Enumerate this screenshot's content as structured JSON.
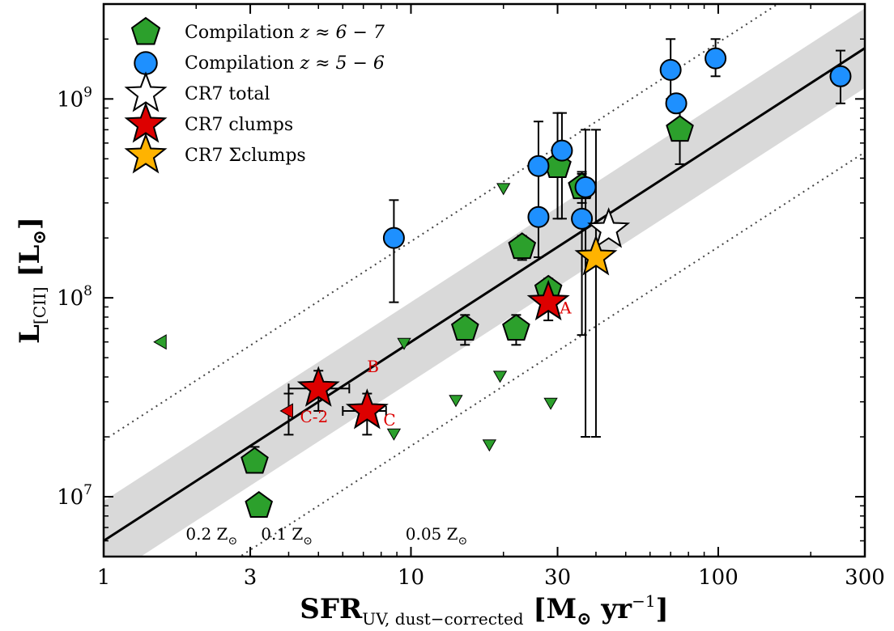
{
  "chart_data": {
    "type": "scatter",
    "title": "",
    "xlabel": "SFR",
    "xlabel_sub": "UV, dust−corrected",
    "xlabel_unit_open": " [M",
    "xlabel_unit_sun": "⊙",
    "xlabel_unit_close": " yr",
    "xlabel_unit_exp": "−1",
    "xlabel_unit_end": "]",
    "ylabel": "L",
    "ylabel_sub": "[CII]",
    "ylabel_unit_open": " [L",
    "ylabel_unit_sun": "⊙",
    "ylabel_unit_end": "]",
    "xscale": "log",
    "yscale": "log",
    "xlim": [
      1,
      300
    ],
    "ylim": [
      5000000,
      3000000000
    ],
    "x_ticks": [
      1,
      3,
      10,
      30,
      100,
      300
    ],
    "x_tick_labels": [
      "1",
      "3",
      "10",
      "30",
      "100",
      "300"
    ],
    "y_ticks": [
      10000000,
      100000000,
      1000000000
    ],
    "y_tick_labels": [
      {
        "base": "10",
        "exp": "7"
      },
      {
        "base": "10",
        "exp": "8"
      },
      {
        "base": "10",
        "exp": "9"
      }
    ],
    "grid": false,
    "legend_position": "top-left",
    "legend": [
      {
        "label": "Compilation ",
        "math": "z ≈ 6 − 7",
        "marker": "pentagon",
        "color": "#2ca02c"
      },
      {
        "label": "Compilation ",
        "math": "z ≈ 5 − 6",
        "marker": "circle",
        "color": "#1e90ff"
      },
      {
        "label": "CR7 total",
        "math": "",
        "marker": "star",
        "color": "#ffffff"
      },
      {
        "label": "CR7 clumps",
        "math": "",
        "marker": "star",
        "color": "#dd0000"
      },
      {
        "label": "CR7 Σclumps",
        "math": "",
        "marker": "star",
        "color": "#ffb300"
      }
    ],
    "relation": {
      "slope": 1.0,
      "intercept_at_x1": 6000000,
      "band_dex": 0.2
    },
    "metallicity_lines": [
      {
        "label": "0.2 Z",
        "sun": "⊙",
        "factor": 3.2,
        "label_x": 1.85,
        "label_y": 6100000
      },
      {
        "label": "0.1 Z",
        "sun": "⊙",
        "factor": 1.0,
        "label_x": 3.25,
        "label_y": 6100000
      },
      {
        "label": "0.05 Z",
        "sun": "⊙",
        "factor": 0.3,
        "label_x": 9.6,
        "label_y": 6100000
      }
    ],
    "series": [
      {
        "name": "Compilation z≈6−7",
        "marker": "pentagon",
        "color": "#2ca02c",
        "points": [
          {
            "x": 3.1,
            "y": 15000000,
            "ylo": 13500000,
            "yhi": 17800000
          },
          {
            "x": 3.2,
            "y": 9000000
          },
          {
            "x": 15,
            "y": 70000000,
            "ylo": 58000000,
            "yhi": 82000000
          },
          {
            "x": 22,
            "y": 70000000,
            "ylo": 58000000,
            "yhi": 82000000
          },
          {
            "x": 23,
            "y": 180000000,
            "ylo": 155000000,
            "yhi": 205000000
          },
          {
            "x": 28,
            "y": 110000000,
            "ylo": 95000000,
            "yhi": 125000000
          },
          {
            "x": 30,
            "y": 460000000,
            "ylo": 250000000,
            "yhi": 850000000
          },
          {
            "x": 36,
            "y": 360000000,
            "ylo": 300000000,
            "yhi": 420000000
          },
          {
            "x": 75,
            "y": 700000000,
            "ylo": 470000000,
            "yhi": 900000000
          }
        ]
      },
      {
        "name": "Compilation z≈5−6",
        "marker": "circle",
        "color": "#1e90ff",
        "points": [
          {
            "x": 8.8,
            "y": 200000000,
            "ylo": 95000000,
            "yhi": 310000000
          },
          {
            "x": 26,
            "y": 460000000,
            "ylo": 160000000,
            "yhi": 770000000
          },
          {
            "x": 26,
            "y": 255000000
          },
          {
            "x": 31,
            "y": 550000000,
            "ylo": 250000000,
            "yhi": 850000000
          },
          {
            "x": 36,
            "y": 250000000,
            "ylo": 65000000,
            "yhi": 430000000
          },
          {
            "x": 37,
            "y": 360000000,
            "ylo": 20000000,
            "yhi": 700000000
          },
          {
            "x": 70,
            "y": 1400000000,
            "ylo": 1000000000,
            "yhi": 2000000000
          },
          {
            "x": 73,
            "y": 950000000
          },
          {
            "x": 98,
            "y": 1600000000,
            "ylo": 1300000000,
            "yhi": 2000000000
          },
          {
            "x": 250,
            "y": 1300000000,
            "ylo": 950000000,
            "yhi": 1750000000
          }
        ]
      },
      {
        "name": "Upper limits",
        "marker": "triangle-down",
        "color": "#2ca02c",
        "points": [
          {
            "x": 20,
            "y": 360000000
          },
          {
            "x": 9.5,
            "y": 60000000
          },
          {
            "x": 19.5,
            "y": 41000000
          },
          {
            "x": 14,
            "y": 31000000
          },
          {
            "x": 28.5,
            "y": 30000000
          },
          {
            "x": 8.8,
            "y": 21000000
          },
          {
            "x": 18,
            "y": 18500000
          }
        ]
      },
      {
        "name": "Left limits",
        "marker": "triangle-left",
        "color": "#2ca02c",
        "points": [
          {
            "x": 1.55,
            "y": 60000000
          }
        ]
      },
      {
        "name": "CR7 total",
        "marker": "star",
        "color": "#ffffff",
        "points": [
          {
            "x": 44,
            "y": 220000000
          }
        ]
      },
      {
        "name": "CR7 Σclumps",
        "marker": "star",
        "color": "#ffb300",
        "points": [
          {
            "x": 40,
            "y": 160000000,
            "ylo": 20000000,
            "yhi": 700000000
          }
        ]
      },
      {
        "name": "CR7 clumps",
        "marker": "star",
        "color": "#dd0000",
        "points": [
          {
            "x": 28,
            "y": 95000000,
            "ylo": 77000000,
            "yhi": 115000000,
            "label": "A",
            "label_dx": 14,
            "label_dy": 14
          },
          {
            "x": 5,
            "y": 35000000,
            "xlo": 4.0,
            "xhi": 6.3,
            "ylo": 27000000,
            "yhi": 43000000,
            "label": "B",
            "label_dx": 60,
            "label_dy": -20
          },
          {
            "x": 7.2,
            "y": 27000000,
            "xlo": 6.0,
            "xhi": 8.3,
            "ylo": 20500000,
            "yhi": 33000000,
            "label": "C",
            "label_dx": 20,
            "label_dy": 18
          }
        ]
      },
      {
        "name": "C-2 limit",
        "marker": "triangle-left",
        "color": "#dd0000",
        "points": [
          {
            "x": 4.0,
            "y": 27000000,
            "ylo": 20500000,
            "yhi": 33000000,
            "label": "C-2",
            "label_dx": 14,
            "label_dy": 14
          }
        ]
      }
    ]
  }
}
